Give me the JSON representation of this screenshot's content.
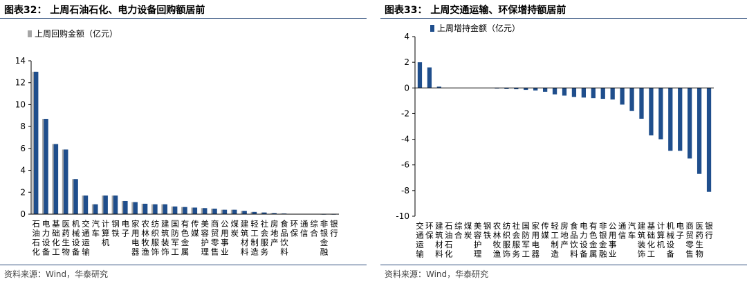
{
  "charts": [
    {
      "title": "图表32：  上周石油石化、电力设备回购额居前",
      "source": "资料来源：Wind，华泰研究",
      "chart_data": {
        "type": "bar",
        "legend": [
          "上周回购金额（亿元）"
        ],
        "legend_position": "top-left",
        "ylim": [
          0,
          14
        ],
        "yticks": [
          0,
          2,
          4,
          6,
          8,
          10,
          12,
          14
        ],
        "grid": false,
        "categories": [
          "石油石化",
          "电力设备",
          "基础化工",
          "医药生物",
          "机械设备",
          "交通运输",
          "汽车",
          "计算机",
          "钢铁",
          "电子",
          "家用电器",
          "农林牧渔",
          "纺织服饰",
          "建筑装饰",
          "国防军工",
          "有色金属",
          "传媒",
          "美容护理",
          "商贸零售",
          "公用事业",
          "煤炭",
          "建筑材料",
          "轻工制造",
          "社会服务",
          "房地产",
          "食品饮料",
          "环保",
          "通信",
          "综合",
          "非银金融",
          "银行"
        ],
        "series": [
          {
            "name": "上周回购金额（亿元）",
            "color": "#1f4e8c",
            "shadow_color": "#a6a6a6",
            "values": [
              13.0,
              8.7,
              6.4,
              5.9,
              3.2,
              1.7,
              0.9,
              1.7,
              1.7,
              1.2,
              1.1,
              0.95,
              0.9,
              0.9,
              0.7,
              0.65,
              0.6,
              0.55,
              0.5,
              0.4,
              0.4,
              0.3,
              0.2,
              0.15,
              0.1,
              0.06,
              0.03,
              0.02,
              0.02,
              0.01,
              0.01
            ]
          }
        ]
      }
    },
    {
      "title": "图表33：  上周交通运输、环保增持额居前",
      "source": "资料来源：Wind，华泰研究",
      "chart_data": {
        "type": "bar",
        "legend": [
          "上周增持金额（亿元）"
        ],
        "legend_position": "top-left",
        "ylim": [
          -10,
          4
        ],
        "yticks": [
          -10,
          -8,
          -6,
          -4,
          -2,
          0,
          2,
          4
        ],
        "grid": false,
        "categories": [
          "交通运输",
          "环保",
          "建筑材料",
          "石油石化",
          "综合",
          "煤炭",
          "美容护理",
          "钢铁",
          "农林牧渔",
          "纺织服饰",
          "社会服务",
          "国防军工",
          "家用电器",
          "传媒",
          "轻工制造",
          "房地产",
          "食品饮料",
          "电力设备",
          "有色金属",
          "非银金融",
          "公用事业",
          "通信",
          "汽车",
          "建筑装饰",
          "基础化工",
          "计算机",
          "机械设备",
          "电子",
          "商贸零售",
          "医药生物",
          "银行"
        ],
        "series": [
          {
            "name": "上周增持金额（亿元）",
            "color": "#1f4e8c",
            "values": [
              2.0,
              1.6,
              0.1,
              0.0,
              0.0,
              0.0,
              0.0,
              0.0,
              -0.05,
              -0.08,
              -0.1,
              -0.15,
              -0.2,
              -0.3,
              -0.5,
              -0.6,
              -0.7,
              -0.75,
              -0.8,
              -0.85,
              -0.9,
              -1.3,
              -1.8,
              -2.4,
              -3.7,
              -4.0,
              -4.9,
              -4.9,
              -5.5,
              -6.7,
              -8.1
            ]
          }
        ]
      }
    }
  ]
}
